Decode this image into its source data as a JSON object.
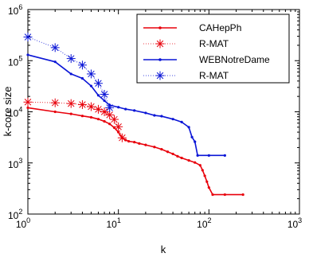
{
  "chart_data": {
    "type": "line",
    "xlabel": "k",
    "ylabel": "k-core size",
    "xscale": "log",
    "yscale": "log",
    "xlim": [
      1,
      1000
    ],
    "ylim": [
      100,
      1000000
    ],
    "legend_position": "top-right",
    "x_tick_labels": [
      {
        "base": "10",
        "exp": "0"
      },
      {
        "base": "10",
        "exp": "1"
      },
      {
        "base": "10",
        "exp": "2"
      },
      {
        "base": "10",
        "exp": "3"
      }
    ],
    "y_tick_labels": [
      {
        "base": "10",
        "exp": "2"
      },
      {
        "base": "10",
        "exp": "3"
      },
      {
        "base": "10",
        "exp": "4"
      },
      {
        "base": "10",
        "exp": "5"
      },
      {
        "base": "10",
        "exp": "6"
      }
    ],
    "series": [
      {
        "name": "CAHepPh",
        "color": "#e8000b",
        "style": "line-dot",
        "points": [
          [
            1,
            12000
          ],
          [
            2,
            10000
          ],
          [
            3,
            9100
          ],
          [
            4,
            8300
          ],
          [
            5,
            7800
          ],
          [
            6,
            7200
          ],
          [
            7,
            6500
          ],
          [
            8,
            5800
          ],
          [
            9,
            4900
          ],
          [
            10,
            4000
          ],
          [
            11,
            3100
          ],
          [
            12,
            2800
          ],
          [
            13,
            2650
          ],
          [
            15,
            2550
          ],
          [
            17,
            2400
          ],
          [
            20,
            2250
          ],
          [
            25,
            2050
          ],
          [
            30,
            1850
          ],
          [
            35,
            1650
          ],
          [
            40,
            1500
          ],
          [
            45,
            1350
          ],
          [
            50,
            1250
          ],
          [
            60,
            1120
          ],
          [
            70,
            1020
          ],
          [
            80,
            900
          ],
          [
            85,
            720
          ],
          [
            90,
            560
          ],
          [
            95,
            430
          ],
          [
            100,
            330
          ],
          [
            110,
            240
          ],
          [
            150,
            240
          ],
          [
            238,
            240
          ]
        ]
      },
      {
        "name": "R-MAT",
        "color": "#e8000b",
        "style": "asterisk",
        "points": [
          [
            1,
            15500
          ],
          [
            2,
            15000
          ],
          [
            3,
            14500
          ],
          [
            4,
            13800
          ],
          [
            5,
            12600
          ],
          [
            6,
            11200
          ],
          [
            7,
            10000
          ],
          [
            8,
            8700
          ],
          [
            9,
            7100
          ],
          [
            10,
            5100
          ],
          [
            11,
            3100
          ]
        ]
      },
      {
        "name": "WEBNotreDame",
        "color": "#0a15d6",
        "style": "line-dot",
        "points": [
          [
            1,
            130000
          ],
          [
            2,
            95000
          ],
          [
            3,
            55000
          ],
          [
            4,
            45000
          ],
          [
            5,
            32000
          ],
          [
            6,
            21000
          ],
          [
            7,
            16500
          ],
          [
            8,
            13500
          ],
          [
            10,
            12300
          ],
          [
            12,
            11300
          ],
          [
            15,
            10600
          ],
          [
            20,
            9500
          ],
          [
            25,
            8500
          ],
          [
            30,
            8200
          ],
          [
            40,
            7200
          ],
          [
            50,
            6300
          ],
          [
            60,
            5000
          ],
          [
            65,
            3200
          ],
          [
            70,
            2600
          ],
          [
            75,
            1400
          ],
          [
            100,
            1400
          ],
          [
            150,
            1400
          ]
        ]
      },
      {
        "name": "R-MAT",
        "color": "#0a15d6",
        "style": "asterisk",
        "points": [
          [
            1,
            290000
          ],
          [
            2,
            180000
          ],
          [
            3,
            110000
          ],
          [
            4,
            82000
          ],
          [
            5,
            55000
          ],
          [
            6,
            36000
          ],
          [
            7,
            22000
          ],
          [
            8,
            12000
          ]
        ]
      }
    ]
  }
}
